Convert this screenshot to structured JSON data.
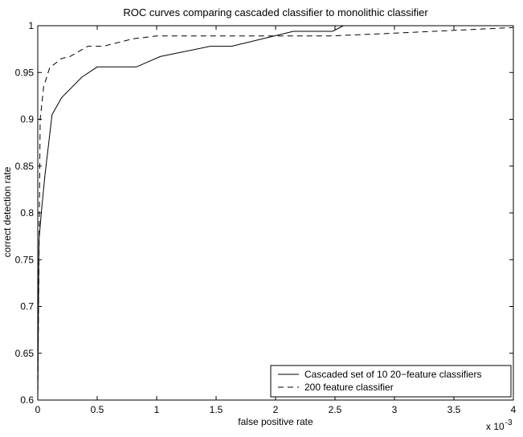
{
  "chart_data": {
    "type": "line",
    "title": "ROC curves comparing cascaded classifier to monolithic classifier",
    "xlabel": "false positive rate",
    "ylabel": "correct detection rate",
    "x_exponent_label": "x 10",
    "x_exponent_power": "-3",
    "xlim": [
      0,
      4
    ],
    "ylim": [
      0.6,
      1.0
    ],
    "x_ticks": [
      "0",
      "0.5",
      "1",
      "1.5",
      "2",
      "2.5",
      "3",
      "3.5",
      "4"
    ],
    "y_ticks": [
      "0.6",
      "0.65",
      "0.7",
      "0.75",
      "0.8",
      "0.85",
      "0.9",
      "0.95",
      "1"
    ],
    "x_tick_values": [
      0,
      0.5,
      1,
      1.5,
      2,
      2.5,
      3,
      3.5,
      4
    ],
    "y_tick_values": [
      0.6,
      0.65,
      0.7,
      0.75,
      0.8,
      0.85,
      0.9,
      0.95,
      1.0
    ],
    "grid": false,
    "legend_position": "bottom-right",
    "series": [
      {
        "name": "Cascaded set of 10 20−feature classifiers",
        "style": "solid",
        "color": "#000000",
        "x": [
          0,
          0.01,
          0.03,
          0.06,
          0.12,
          0.2,
          0.37,
          0.5,
          0.83,
          1.03,
          1.45,
          1.63,
          2.15,
          2.48,
          2.57,
          4.0
        ],
        "y": [
          0.6,
          0.77,
          0.8,
          0.84,
          0.905,
          0.923,
          0.945,
          0.956,
          0.956,
          0.967,
          0.978,
          0.978,
          0.994,
          0.994,
          1.0,
          1.0
        ]
      },
      {
        "name": "200 feature classifier",
        "style": "dashed",
        "color": "#000000",
        "x": [
          0,
          0.02,
          0.05,
          0.1,
          0.2,
          0.27,
          0.42,
          0.55,
          0.8,
          1.0,
          1.4,
          1.6,
          2.0,
          2.45,
          3.0,
          3.5,
          4.0
        ],
        "y": [
          0.6,
          0.9,
          0.935,
          0.955,
          0.965,
          0.967,
          0.978,
          0.978,
          0.986,
          0.989,
          0.989,
          0.989,
          0.989,
          0.989,
          0.992,
          0.995,
          0.998
        ]
      }
    ]
  }
}
